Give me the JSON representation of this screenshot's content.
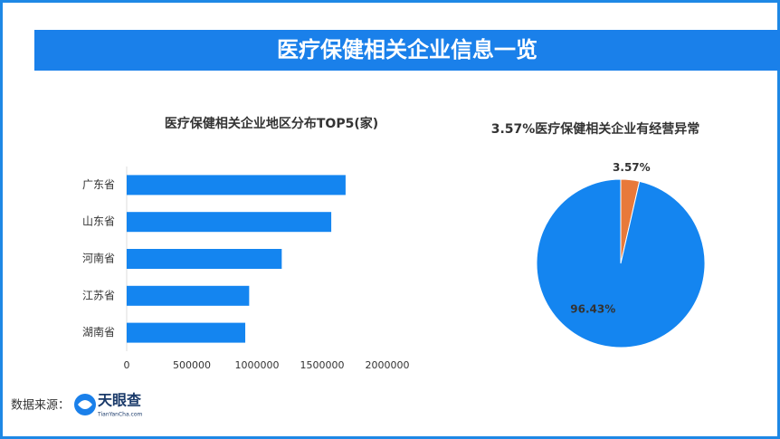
{
  "header": {
    "title": "医疗保健相关企业信息一览"
  },
  "chart_data": [
    {
      "type": "bar",
      "orientation": "horizontal",
      "title": "医疗保健相关企业地区分布TOP5(家)",
      "categories": [
        "广东省",
        "山东省",
        "河南省",
        "江苏省",
        "湖南省"
      ],
      "values": [
        1680000,
        1570000,
        1190000,
        940000,
        910000
      ],
      "color": "#1485f0",
      "xlim": [
        0,
        2000000
      ],
      "xticks": [
        0,
        500000,
        1000000,
        1500000,
        2000000
      ]
    },
    {
      "type": "pie",
      "title": "3.57%医疗保健相关企业有经营异常",
      "values": [
        3.57,
        96.43
      ],
      "value_labels": [
        "3.57%",
        "96.43%"
      ],
      "colors": [
        "#e8793a",
        "#1485f0"
      ]
    }
  ],
  "footer": {
    "source_label": "数据来源：",
    "logo_text": "天眼查",
    "logo_sub": "TianYanCha.com"
  }
}
